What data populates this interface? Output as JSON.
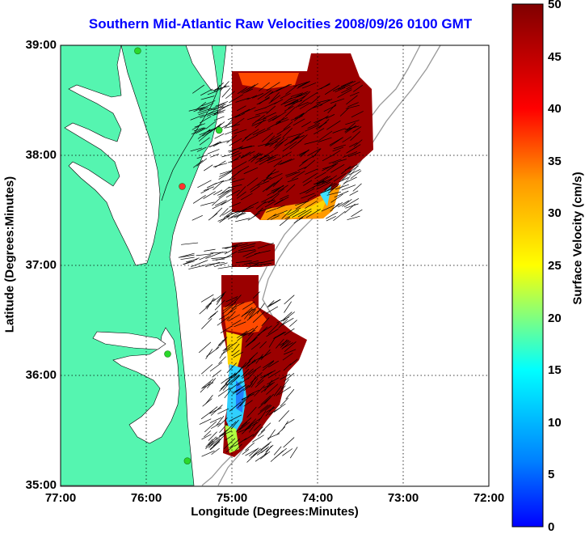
{
  "title": "Southern Mid-Atlantic Raw Velocities 2008/09/26 0100 GMT",
  "x_axis": {
    "label": "Longitude (Degrees:Minutes)",
    "ticks": [
      "77:00",
      "76:00",
      "75:00",
      "74:00",
      "73:00",
      "72:00"
    ]
  },
  "y_axis": {
    "label": "Latitude (Degrees:Minutes)",
    "ticks": [
      "39:00",
      "38:00",
      "37:00",
      "36:00",
      "35:00"
    ]
  },
  "colorbar": {
    "label": "Surface Velocity (cm/s)",
    "ticks": [
      "50",
      "45",
      "40",
      "35",
      "30",
      "25",
      "20",
      "15",
      "10",
      "5",
      "0"
    ],
    "min": 0,
    "max": 50,
    "colormap": "jet"
  },
  "map": {
    "lon_range": [
      -77,
      -72
    ],
    "lat_range": [
      35,
      39
    ],
    "land_color": "#55f5b0",
    "water_color": "#ffffff",
    "grid": "dotted",
    "stations": [
      {
        "lon": -76.1,
        "lat": 38.95,
        "color": "#2bd82b"
      },
      {
        "lon": -75.15,
        "lat": 38.23,
        "color": "#2bd82b"
      },
      {
        "lon": -75.58,
        "lat": 37.72,
        "color": "#ff3030"
      },
      {
        "lon": -75.75,
        "lat": 36.2,
        "color": "#2bd82b"
      },
      {
        "lon": -75.52,
        "lat": 35.23,
        "color": "#2bd82b"
      }
    ]
  }
}
